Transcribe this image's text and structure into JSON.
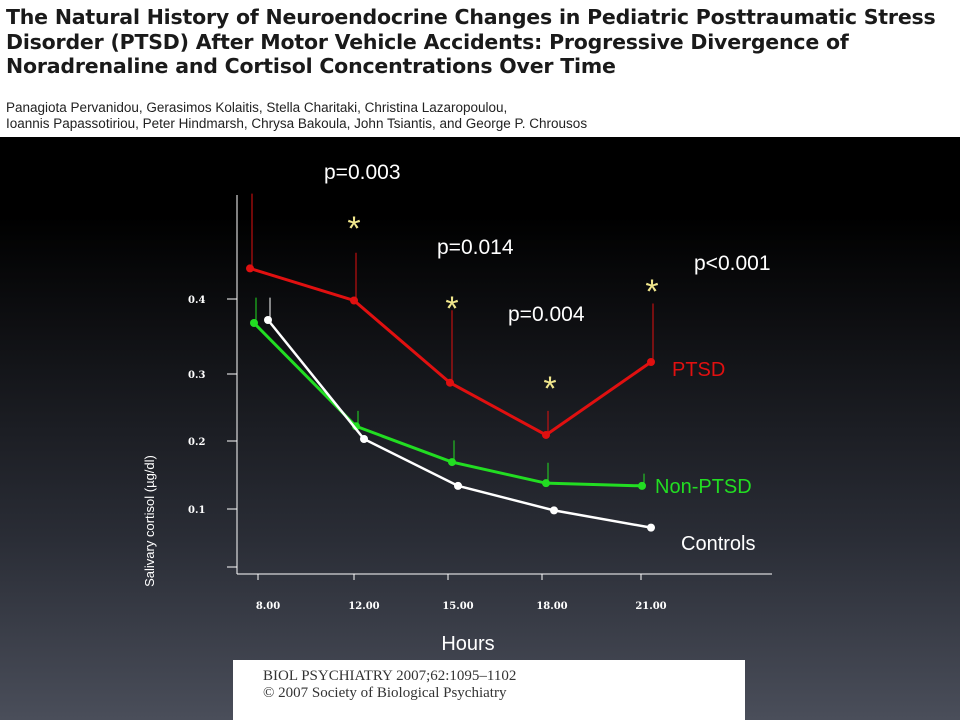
{
  "paper": {
    "title": "The Natural History of Neuroendocrine Changes in Pediatric Posttraumatic Stress Disorder (PTSD) After Motor Vehicle Accidents: Progressive Divergence of Noradrenaline and Cortisol Concentrations Over Time",
    "authors_line1": "Panagiota Pervanidou, Gerasimos Kolaitis, Stella Charitaki, Christina Lazaropoulou,",
    "authors_line2": "Ioannis Papassotiriou, Peter Hindmarsh, Chrysa Bakoula, John Tsiantis, and George P. Chrousos"
  },
  "citation": {
    "line1": "BIOL PSYCHIATRY 2007;62:1095–1102",
    "line2": "© 2007 Society of Biological Psychiatry"
  },
  "chart_data": {
    "type": "line",
    "title": "",
    "xlabel": "Hours",
    "ylabel": "Salivary cortisol (µg/dl)",
    "categories": [
      "8.00",
      "12.00",
      "15.00",
      "18.00",
      "21.00"
    ],
    "y_ticks": [
      "0.4",
      "0.3",
      "0.2",
      "0.1"
    ],
    "ylim": [
      0.0,
      0.5
    ],
    "grid": false,
    "series": [
      {
        "name": "PTSD",
        "color": "#e01010",
        "values": [
          0.445,
          0.398,
          0.287,
          0.209,
          0.316
        ],
        "error_upper": [
          0.555,
          0.468,
          0.385,
          0.245,
          0.394
        ]
      },
      {
        "name": "Non-PTSD",
        "color": "#22dd22",
        "values": [
          0.368,
          0.222,
          0.169,
          0.138,
          0.134
        ],
        "error_upper": [
          0.402,
          0.245,
          0.201,
          0.168,
          0.152
        ]
      },
      {
        "name": "Controls",
        "color": "#ffffff",
        "values": [
          0.372,
          0.203,
          0.134,
          0.098,
          0.073
        ],
        "error_upper": [
          0.402,
          0.203,
          0.134,
          0.098,
          0.073
        ]
      }
    ],
    "annotations": [
      {
        "text": "p=0.003",
        "near": "12.00"
      },
      {
        "text": "p=0.014",
        "near": "15.00"
      },
      {
        "text": "p=0.004",
        "near": "18.00"
      },
      {
        "text": "p<0.001",
        "near": "21.00"
      }
    ],
    "significance_marker": "*"
  }
}
